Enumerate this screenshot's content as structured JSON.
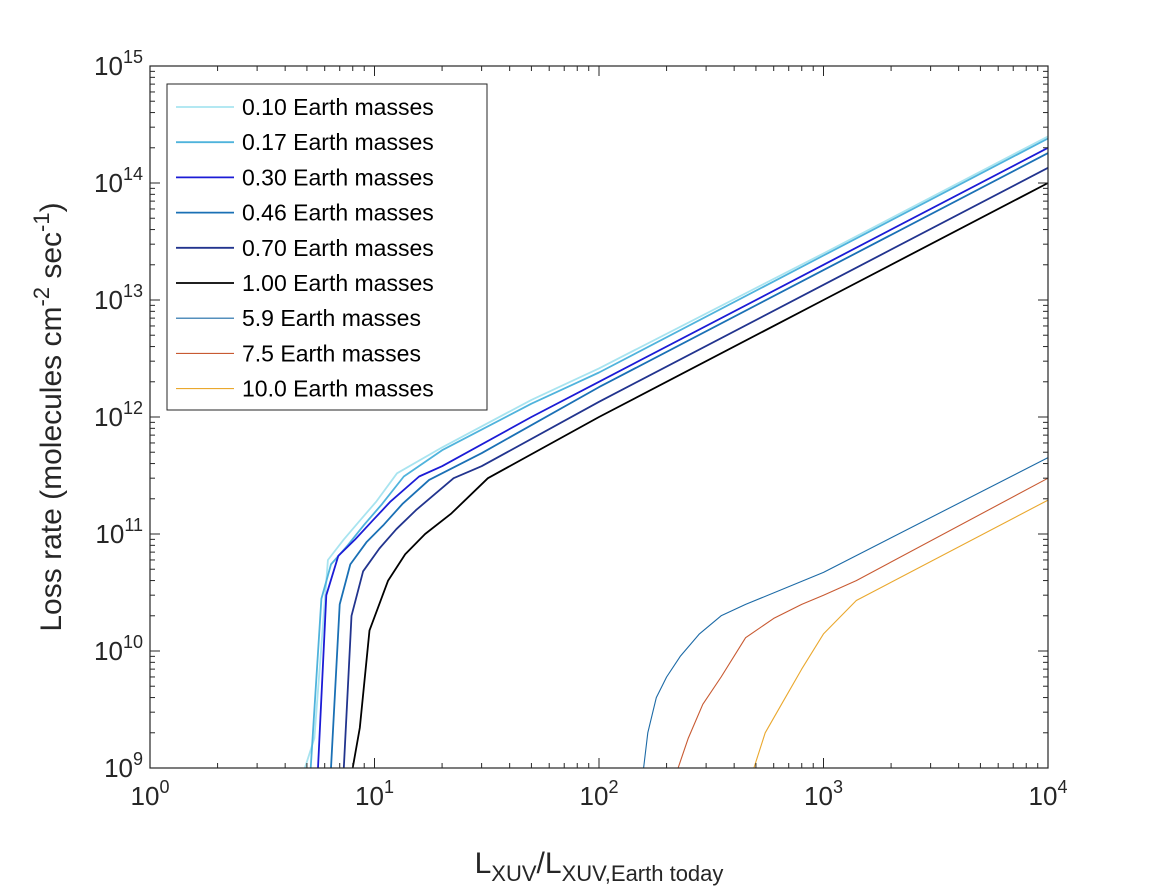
{
  "chart_data": {
    "type": "line",
    "title": "",
    "xlabel": {
      "main": "L",
      "sub1": "XUV",
      "slash": "/",
      "main2": "L",
      "sub2": "XUV,Earth today"
    },
    "ylabel": {
      "main": "Loss rate (molecules cm",
      "exp1": "-2",
      "mid": " sec",
      "exp2": "-1",
      "end": ")"
    },
    "x_scale": "log",
    "y_scale": "log",
    "xlim": [
      1,
      10000
    ],
    "ylim": [
      1000000000,
      1000000000000000
    ],
    "grid": false,
    "legend_position": "top-left",
    "x_ticks": [
      {
        "value": 1,
        "base": "10",
        "exp": "0"
      },
      {
        "value": 10,
        "base": "10",
        "exp": "1"
      },
      {
        "value": 100,
        "base": "10",
        "exp": "2"
      },
      {
        "value": 1000,
        "base": "10",
        "exp": "3"
      },
      {
        "value": 10000,
        "base": "10",
        "exp": "4"
      }
    ],
    "y_ticks": [
      {
        "value": 1000000000,
        "base": "10",
        "exp": "9"
      },
      {
        "value": 10000000000,
        "base": "10",
        "exp": "10"
      },
      {
        "value": 100000000000,
        "base": "10",
        "exp": "11"
      },
      {
        "value": 1000000000000,
        "base": "10",
        "exp": "12"
      },
      {
        "value": 10000000000000,
        "base": "10",
        "exp": "13"
      },
      {
        "value": 100000000000000,
        "base": "10",
        "exp": "14"
      },
      {
        "value": 1000000000000000,
        "base": "10",
        "exp": "15"
      }
    ],
    "series": [
      {
        "name": "0.10 Earth masses",
        "color": "#a8e4f0",
        "x": [
          4.9,
          5.4,
          6.2,
          7.3,
          8.6,
          10.2,
          12.6,
          20,
          50,
          100,
          1000,
          10000
        ],
        "y": [
          1000000000.0,
          1800000000.0,
          60000000000.0,
          90000000000.0,
          130000000000.0,
          190000000000.0,
          330000000000.0,
          550000000000.0,
          1400000000000.0,
          2600000000000.0,
          25000000000000.0,
          250000000000000.0
        ]
      },
      {
        "name": "0.17 Earth masses",
        "color": "#4fb3dc",
        "x": [
          5.2,
          5.8,
          6.4,
          7.6,
          9.0,
          10.8,
          13.5,
          20,
          50,
          100,
          1000,
          10000
        ],
        "y": [
          1000000000.0,
          28000000000.0,
          55000000000.0,
          80000000000.0,
          120000000000.0,
          180000000000.0,
          310000000000.0,
          520000000000.0,
          1300000000000.0,
          2400000000000.0,
          24000000000000.0,
          240000000000000.0
        ]
      },
      {
        "name": "0.30 Earth masses",
        "color": "#1c1cd6",
        "x": [
          5.6,
          6.1,
          6.9,
          8.2,
          9.8,
          11.8,
          15.8,
          20,
          50,
          100,
          1000,
          10000
        ],
        "y": [
          1000000000.0,
          30000000000.0,
          65000000000.0,
          90000000000.0,
          130000000000.0,
          190000000000.0,
          310000000000.0,
          380000000000.0,
          1000000000000.0,
          2000000000000.0,
          20000000000000.0,
          200000000000000.0
        ]
      },
      {
        "name": "0.46 Earth masses",
        "color": "#1a70b5",
        "x": [
          6.4,
          7.0,
          7.8,
          9.2,
          11.0,
          13.3,
          17.5,
          30,
          100,
          1000,
          10000
        ],
        "y": [
          1000000000.0,
          25000000000.0,
          55000000000.0,
          85000000000.0,
          120000000000.0,
          180000000000.0,
          290000000000.0,
          490000000000.0,
          1800000000000.0,
          18000000000000.0,
          180000000000000.0
        ]
      },
      {
        "name": "0.70 Earth masses",
        "color": "#22348e",
        "x": [
          7.3,
          7.9,
          8.9,
          10.5,
          12.5,
          15.3,
          22.5,
          30,
          100,
          1000,
          10000
        ],
        "y": [
          1000000000.0,
          20000000000.0,
          48000000000.0,
          75000000000.0,
          110000000000.0,
          160000000000.0,
          300000000000.0,
          380000000000.0,
          1350000000000.0,
          13500000000000.0,
          135000000000000.0
        ]
      },
      {
        "name": "1.00 Earth masses",
        "color": "#000000",
        "x": [
          8.0,
          8.6,
          9.5,
          11.5,
          13.7,
          16.8,
          22,
          32,
          100,
          1000,
          10000
        ],
        "y": [
          1000000000.0,
          2200000000.0,
          15000000000.0,
          40000000000.0,
          67000000000.0,
          100000000000.0,
          150000000000.0,
          300000000000.0,
          1000000000000.0,
          10000000000000.0,
          100000000000000.0
        ]
      },
      {
        "name": "5.9 Earth masses",
        "color": "#1c6aa6",
        "x": [
          158,
          165,
          180,
          200,
          230,
          280,
          350,
          450,
          1000,
          10000
        ],
        "y": [
          1000000000.0,
          2000000000.0,
          4000000000.0,
          6000000000.0,
          9000000000.0,
          14000000000.0,
          20000000000.0,
          25000000000.0,
          47000000000.0,
          450000000000.0
        ]
      },
      {
        "name": "7.5 Earth masses",
        "color": "#c85a32",
        "x": [
          225,
          250,
          290,
          350,
          450,
          600,
          800,
          1000,
          1400,
          10000
        ],
        "y": [
          1000000000.0,
          1800000000.0,
          3500000000.0,
          6000000000.0,
          13000000000.0,
          19000000000.0,
          25000000000.0,
          30000000000.0,
          40000000000.0,
          300000000000.0
        ]
      },
      {
        "name": "10.0 Earth masses",
        "color": "#eaa82e",
        "x": [
          490,
          550,
          650,
          800,
          1000,
          1400,
          10000
        ],
        "y": [
          1000000000.0,
          2000000000.0,
          3500000000.0,
          7000000000.0,
          14000000000.0,
          27000000000.0,
          195000000000.0
        ]
      }
    ]
  }
}
